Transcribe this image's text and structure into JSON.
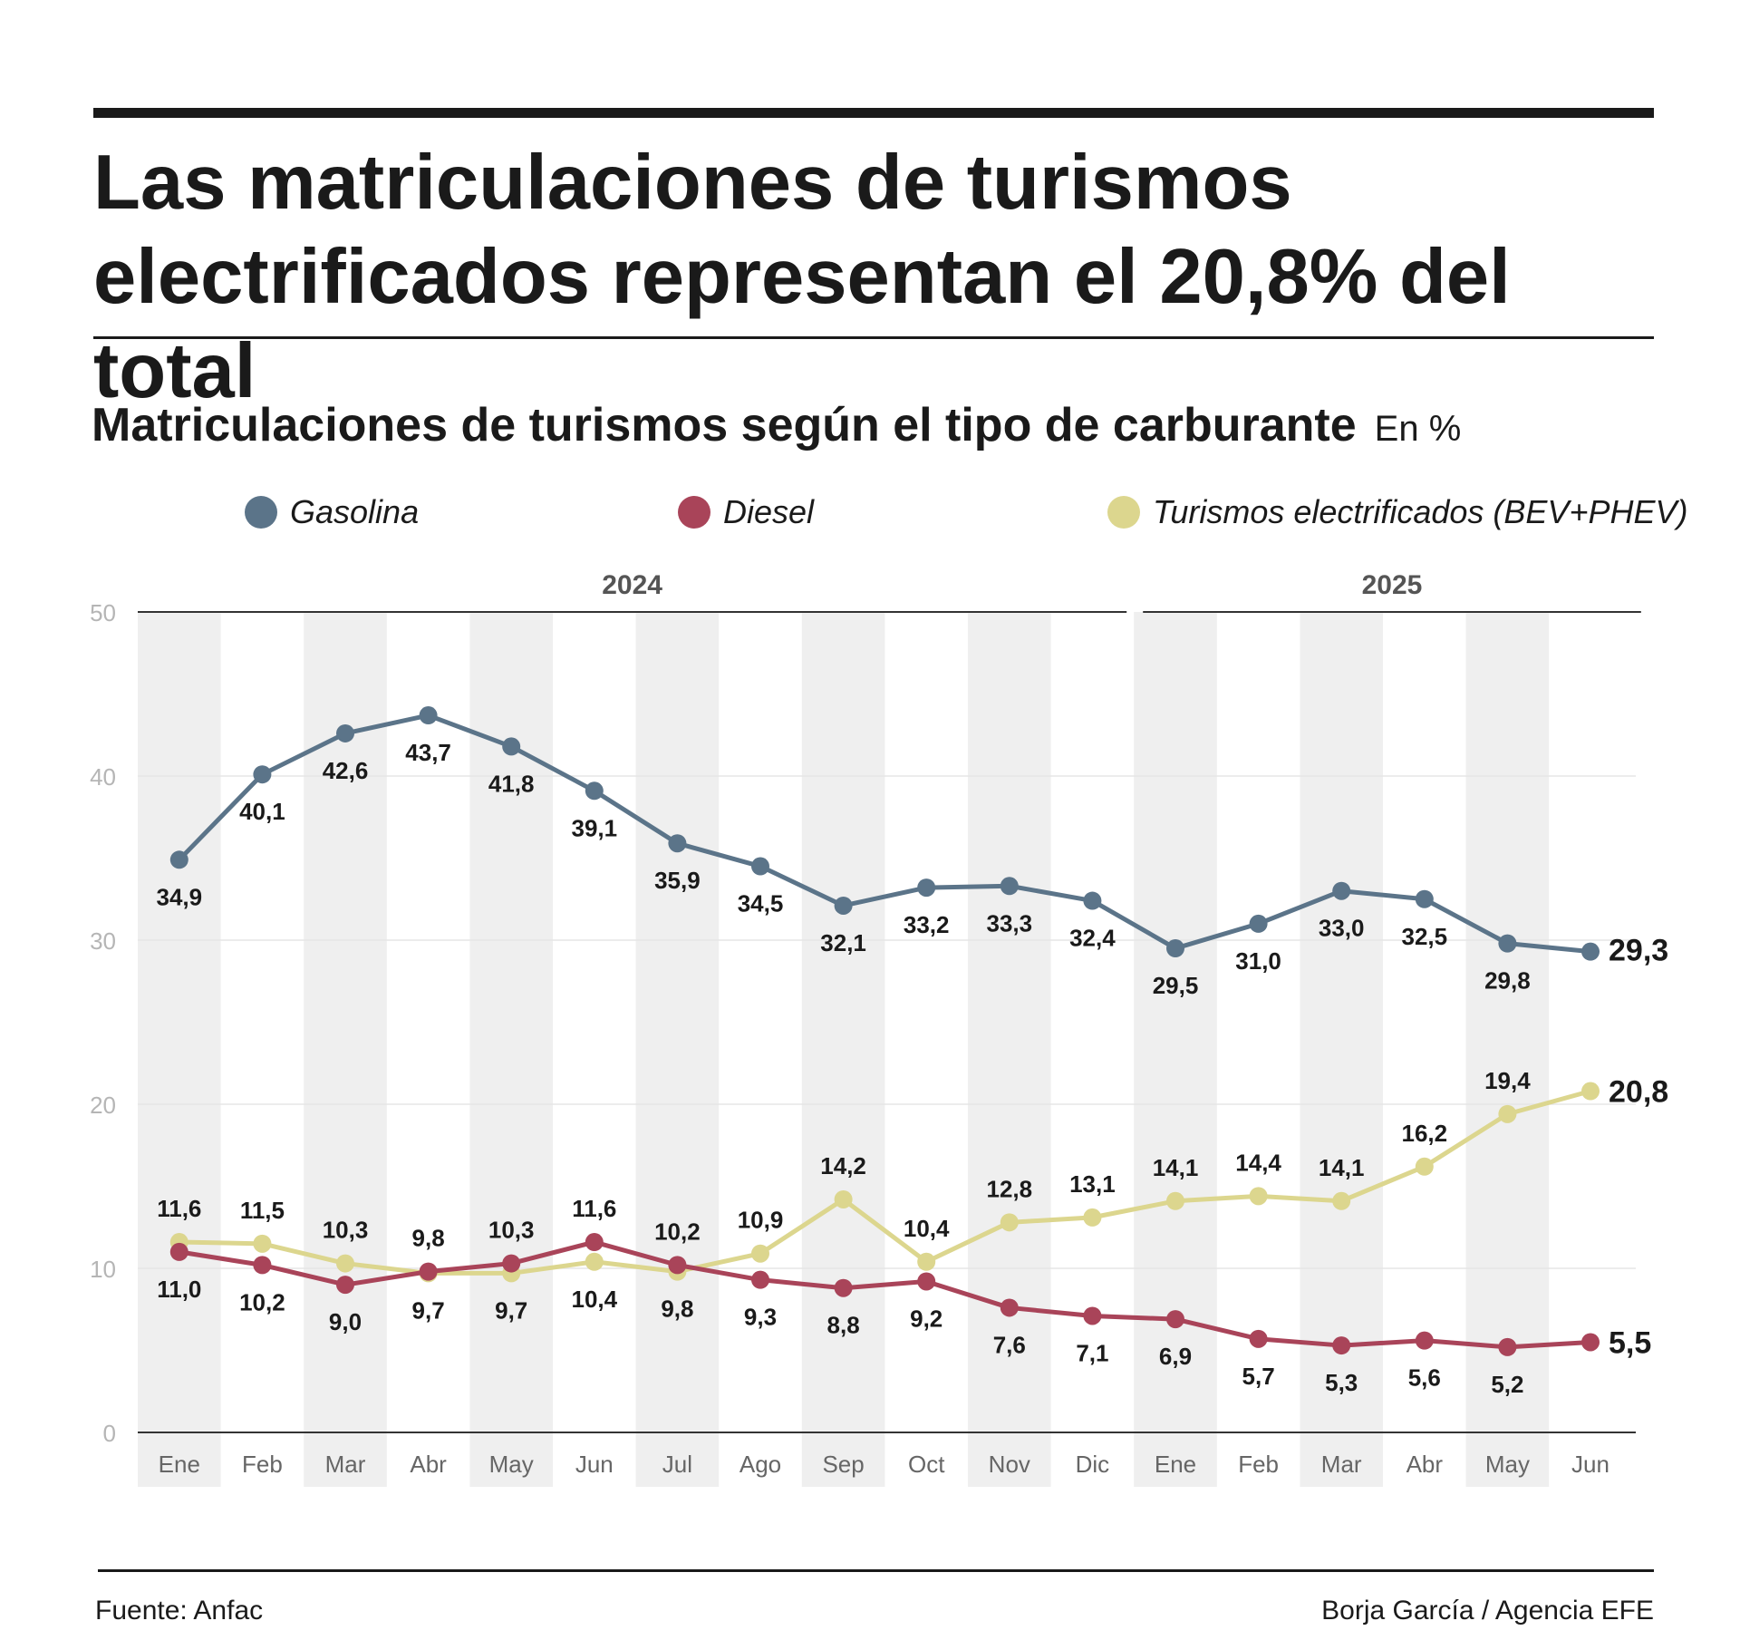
{
  "title": "Las matriculaciones de turismos electrificados representan el 20,8% del total",
  "subtitle": "Matriculaciones de turismos según el tipo de carburante",
  "unit_note": "En %",
  "source": "Fuente: Anfac",
  "credit": "Borja García / Agencia EFE",
  "colors": {
    "gasolina": "#5b7489",
    "diesel": "#a94459",
    "electrificados": "#dcd68e",
    "stripe": "#efefef",
    "grid": "#e6e6e6"
  },
  "chart_data": {
    "type": "line",
    "title": "Matriculaciones de turismos según el tipo de carburante",
    "ylabel": "En %",
    "ylim": [
      0,
      50
    ],
    "yticks": [
      0,
      10,
      20,
      30,
      40,
      50
    ],
    "grid": true,
    "legend_position": "top",
    "year_groups": [
      {
        "label": "2024",
        "start": 0,
        "end": 11
      },
      {
        "label": "2025",
        "start": 12,
        "end": 17
      }
    ],
    "categories": [
      "Ene",
      "Feb",
      "Mar",
      "Abr",
      "May",
      "Jun",
      "Jul",
      "Ago",
      "Sep",
      "Oct",
      "Nov",
      "Dic",
      "Ene",
      "Feb",
      "Mar",
      "Abr",
      "May",
      "Jun"
    ],
    "series": [
      {
        "name": "Gasolina",
        "color_key": "gasolina",
        "values": [
          34.9,
          40.1,
          42.6,
          43.7,
          41.8,
          39.1,
          35.9,
          34.5,
          32.1,
          33.2,
          33.3,
          32.4,
          29.5,
          31.0,
          33.0,
          32.5,
          29.8,
          29.3
        ],
        "labels": [
          "34,9",
          "40,1",
          "42,6",
          "43,7",
          "41,8",
          "39,1",
          "35,9",
          "34,5",
          "32,1",
          "33,2",
          "33,3",
          "32,4",
          "29,5",
          "31,0",
          "33,0",
          "32,5",
          "29,8",
          "29,3"
        ]
      },
      {
        "name": "Diesel",
        "color_key": "diesel",
        "values": [
          11.0,
          10.2,
          9.0,
          9.8,
          10.3,
          11.6,
          10.2,
          9.3,
          8.8,
          9.2,
          7.6,
          7.1,
          6.9,
          5.7,
          5.3,
          5.6,
          5.2,
          5.5
        ],
        "labels": [
          "11,0",
          "10,2",
          "9,0",
          "9,8",
          "10,3",
          "11,6",
          "10,2",
          "9,3",
          "8,8",
          "9,2",
          "7,6",
          "7,1",
          "6,9",
          "5,7",
          "5,3",
          "5,6",
          "5,2",
          "5,5"
        ]
      },
      {
        "name": "Turismos electrificados (BEV+PHEV)",
        "color_key": "electrificados",
        "values": [
          11.6,
          11.5,
          10.3,
          9.7,
          9.7,
          10.4,
          9.8,
          10.9,
          14.2,
          10.4,
          12.8,
          13.1,
          14.1,
          14.4,
          14.1,
          16.2,
          19.4,
          20.8
        ],
        "labels": [
          "11,6",
          "11,5",
          "10,3",
          "9,7",
          "9,7",
          "10,4",
          "9,8",
          "10,9",
          "14,2",
          "10,4",
          "12,8",
          "13,1",
          "14,1",
          "14,4",
          "14,1",
          "16,2",
          "19,4",
          "20,8"
        ]
      }
    ]
  }
}
